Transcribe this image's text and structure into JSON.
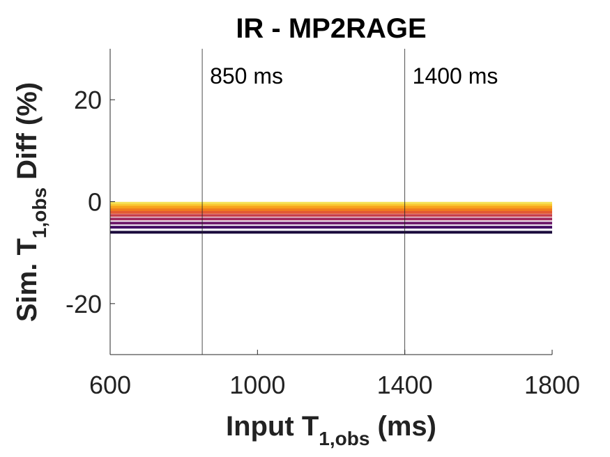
{
  "chart_data": {
    "type": "line",
    "title": "IR - MP2RAGE",
    "xlabel": {
      "main": "Input T",
      "sub": "1,obs",
      "unit": " (ms)"
    },
    "ylabel": {
      "pre": "Sim. T",
      "sub": "1,obs",
      "post": " Diff (%)"
    },
    "xlim": [
      600,
      1800
    ],
    "ylim": [
      -30,
      30
    ],
    "xticks": [
      600,
      1000,
      1400,
      1800
    ],
    "xtick_labels": [
      "600",
      "1000",
      "1400",
      "1800"
    ],
    "yticks": [
      -20,
      0,
      20
    ],
    "ytick_labels": [
      "-20",
      "0",
      "20"
    ],
    "grid": false,
    "legend": "none",
    "vlines": [
      {
        "x": 850,
        "label": "850 ms"
      },
      {
        "x": 1400,
        "label": "1400 ms"
      }
    ],
    "x": [
      600,
      1800
    ],
    "series": [
      {
        "values": [
          -0.3,
          -0.3
        ],
        "color": "#f5e35a"
      },
      {
        "values": [
          -0.7,
          -0.7
        ],
        "color": "#f9c932"
      },
      {
        "values": [
          -1.1,
          -1.1
        ],
        "color": "#f7a21c"
      },
      {
        "values": [
          -1.6,
          -1.6
        ],
        "color": "#f07c1f"
      },
      {
        "values": [
          -2.1,
          -2.1
        ],
        "color": "#e35a32"
      },
      {
        "values": [
          -2.7,
          -2.7
        ],
        "color": "#c7404c"
      },
      {
        "values": [
          -3.4,
          -3.4
        ],
        "color": "#9e2a5e"
      },
      {
        "values": [
          -4.2,
          -4.2
        ],
        "color": "#6e1a6a"
      },
      {
        "values": [
          -5.0,
          -5.0
        ],
        "color": "#440e63"
      },
      {
        "values": [
          -6.0,
          -6.0
        ],
        "color": "#1a0a3c"
      }
    ]
  }
}
